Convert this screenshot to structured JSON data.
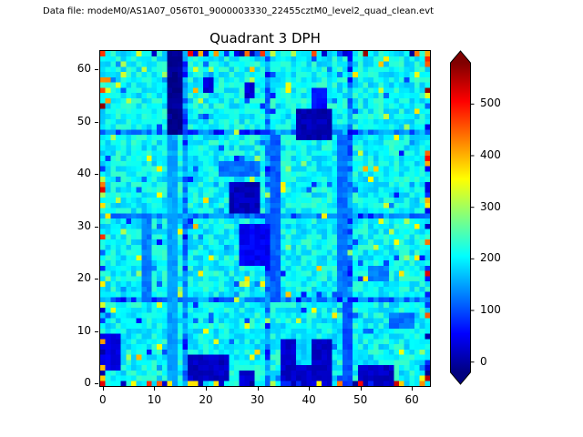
{
  "figure": {
    "background": "#ffffff",
    "spine_color": "#000000"
  },
  "chart_data": {
    "type": "heatmap",
    "title": "Quadrant 3 DPH",
    "annotation": "Data file: modeM0/AS1A07_056T01_9000003330_22455cztM0_level2_quad_clean.evt",
    "grid_shape": [
      64,
      64
    ],
    "xlim": [
      -0.5,
      63.5
    ],
    "ylim": [
      -0.5,
      63.5
    ],
    "x_ticks": [
      0,
      10,
      20,
      30,
      40,
      50,
      60
    ],
    "y_ticks": [
      0,
      10,
      20,
      30,
      40,
      50,
      60
    ],
    "colorbar_ticks": [
      0,
      100,
      200,
      300,
      400,
      500
    ],
    "vmin": -20,
    "vmax": 580,
    "colorbar_extend": "both",
    "colormap": "jet",
    "colormap_stops": [
      [
        0.0,
        0,
        0,
        128
      ],
      [
        0.125,
        0,
        0,
        255
      ],
      [
        0.375,
        0,
        255,
        255
      ],
      [
        0.625,
        255,
        255,
        0
      ],
      [
        0.875,
        255,
        0,
        0
      ],
      [
        1.0,
        128,
        0,
        0
      ]
    ],
    "triangle_top_color": "#800000",
    "triangle_bottom_color": "#000080",
    "seed": 1337,
    "base_value": 205,
    "noise_amplitude": 38,
    "boundary_positions": [
      16,
      32,
      48
    ],
    "boundary_delta": -70,
    "interior_hot_prob": 0.025,
    "interior_cold_prob": 0.03,
    "edge_hot_prob": 0.2,
    "edge_cold_prob": 0.22,
    "low_features": [
      {
        "x0": 13,
        "x1": 14,
        "y0": 0,
        "y1": 63,
        "value": 150
      },
      {
        "x0": 13,
        "x1": 15,
        "y0": 48,
        "y1": 63,
        "value": -10
      },
      {
        "x0": 20,
        "x1": 21,
        "y0": 56,
        "y1": 58,
        "value": 30
      },
      {
        "x0": 28,
        "x1": 29,
        "y0": 55,
        "y1": 57,
        "value": 30
      },
      {
        "x0": 38,
        "x1": 44,
        "y0": 47,
        "y1": 52,
        "value": 10
      },
      {
        "x0": 41,
        "x1": 43,
        "y0": 53,
        "y1": 56,
        "value": 60
      },
      {
        "x0": 23,
        "x1": 30,
        "y0": 40,
        "y1": 42,
        "value": 120
      },
      {
        "x0": 25,
        "x1": 30,
        "y0": 33,
        "y1": 38,
        "value": 15
      },
      {
        "x0": 27,
        "x1": 33,
        "y0": 23,
        "y1": 30,
        "value": 50
      },
      {
        "x0": 33,
        "x1": 34,
        "y0": 16,
        "y1": 47,
        "value": 110
      },
      {
        "x0": 46,
        "x1": 47,
        "y0": 17,
        "y1": 47,
        "value": 120
      },
      {
        "x0": 8,
        "x1": 9,
        "y0": 16,
        "y1": 31,
        "value": 130
      },
      {
        "x0": 47,
        "x1": 48,
        "y0": 0,
        "y1": 15,
        "value": 100
      },
      {
        "x0": 17,
        "x1": 24,
        "y0": 1,
        "y1": 5,
        "value": 20
      },
      {
        "x0": 35,
        "x1": 44,
        "y0": 0,
        "y1": 8,
        "value": 25
      },
      {
        "x0": 38,
        "x1": 40,
        "y0": 4,
        "y1": 8,
        "value": 180
      },
      {
        "x0": 50,
        "x1": 56,
        "y0": 0,
        "y1": 3,
        "value": 20
      },
      {
        "x0": 27,
        "x1": 29,
        "y0": 0,
        "y1": 2,
        "value": 30
      },
      {
        "x0": 0,
        "x1": 3,
        "y0": 3,
        "y1": 9,
        "value": 40
      },
      {
        "x0": 56,
        "x1": 60,
        "y0": 11,
        "y1": 13,
        "value": 120
      },
      {
        "x0": 52,
        "x1": 55,
        "y0": 20,
        "y1": 22,
        "value": 130
      }
    ]
  }
}
